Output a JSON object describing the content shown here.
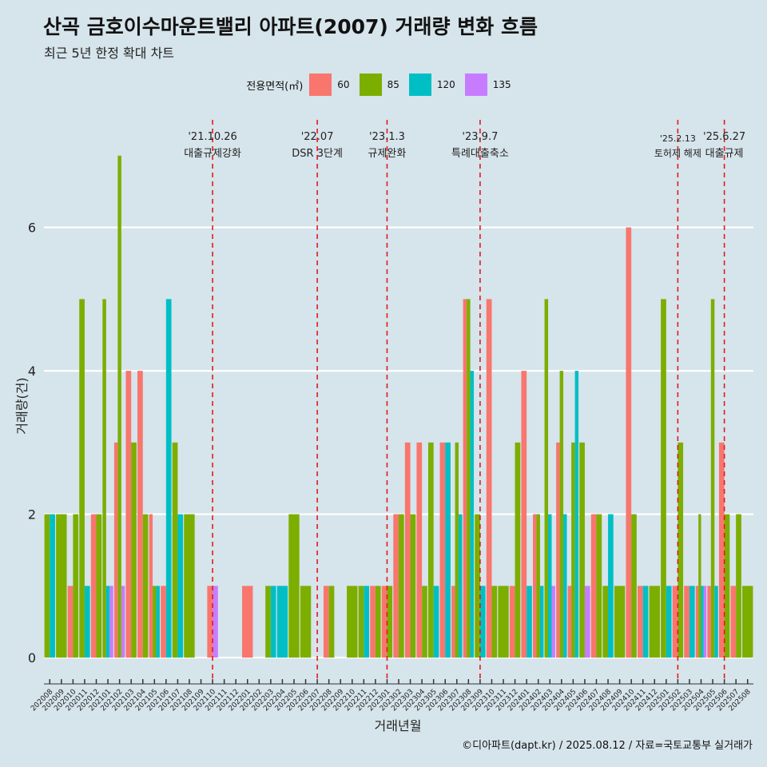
{
  "title": "산곡 금호이수마운트밸리 아파트(2007) 거래량 변화 흐름",
  "subtitle": "최근 5년 한정 확대 차트",
  "caption": "©디아파트(dapt.kr) / 2025.08.12 / 자료=국토교통부 실거래가",
  "legend": {
    "title": "전용면적(㎡)",
    "items": [
      {
        "label": "60",
        "color": "#f8766d"
      },
      {
        "label": "85",
        "color": "#7cae00"
      },
      {
        "label": "120",
        "color": "#00bfc4"
      },
      {
        "label": "135",
        "color": "#c77cff"
      }
    ]
  },
  "chart_data": {
    "type": "bar",
    "xlabel": "거래년월",
    "ylabel": "거래량(건)",
    "ylim": [
      -0.3,
      7.5
    ],
    "yticks": [
      0,
      2,
      4,
      6
    ],
    "grid": "horizontal",
    "legend_position": "top",
    "categories": [
      "202008",
      "202009",
      "202010",
      "202011",
      "202012",
      "202101",
      "202102",
      "202103",
      "202104",
      "202105",
      "202106",
      "202107",
      "202108",
      "202109",
      "202110",
      "202111",
      "202112",
      "202201",
      "202202",
      "202203",
      "202204",
      "202205",
      "202206",
      "202207",
      "202208",
      "202209",
      "202210",
      "202211",
      "202212",
      "202301",
      "202302",
      "202303",
      "202304",
      "202305",
      "202306",
      "202307",
      "202308",
      "202309",
      "202310",
      "202311",
      "202312",
      "202401",
      "202402",
      "202403",
      "202404",
      "202405",
      "202406",
      "202407",
      "202408",
      "202409",
      "202410",
      "202411",
      "202412",
      "202501",
      "202502",
      "202503",
      "202504",
      "202505",
      "202506",
      "202507",
      "202508"
    ],
    "series": [
      {
        "name": "60",
        "color": "#f8766d",
        "values": [
          0,
          0,
          1,
          0,
          2,
          0,
          3,
          4,
          4,
          2,
          1,
          0,
          0,
          0,
          1,
          0,
          0,
          1,
          0,
          0,
          0,
          0,
          0,
          0,
          1,
          0,
          0,
          0,
          1,
          1,
          2,
          3,
          3,
          0,
          3,
          1,
          5,
          0,
          5,
          0,
          1,
          4,
          2,
          0,
          3,
          1,
          0,
          2,
          0,
          0,
          6,
          1,
          0,
          0,
          1,
          1,
          1,
          1,
          3,
          1,
          0
        ]
      },
      {
        "name": "85",
        "color": "#7cae00",
        "values": [
          2,
          2,
          2,
          5,
          2,
          5,
          7,
          3,
          2,
          1,
          0,
          3,
          2,
          0,
          0,
          0,
          0,
          0,
          0,
          1,
          0,
          2,
          1,
          0,
          1,
          0,
          1,
          1,
          1,
          1,
          2,
          2,
          1,
          3,
          0,
          3,
          5,
          2,
          1,
          1,
          3,
          0,
          2,
          5,
          4,
          3,
          3,
          2,
          1,
          1,
          2,
          0,
          1,
          5,
          3,
          0,
          2,
          5,
          2,
          2,
          1
        ]
      },
      {
        "name": "120",
        "color": "#00bfc4",
        "values": [
          2,
          0,
          0,
          1,
          0,
          1,
          0,
          0,
          0,
          1,
          5,
          2,
          0,
          0,
          0,
          0,
          0,
          0,
          0,
          1,
          1,
          0,
          0,
          0,
          0,
          0,
          0,
          1,
          0,
          0,
          0,
          0,
          0,
          1,
          3,
          2,
          4,
          1,
          0,
          0,
          0,
          1,
          1,
          2,
          2,
          4,
          0,
          0,
          2,
          0,
          0,
          1,
          0,
          1,
          0,
          1,
          1,
          1,
          0,
          0,
          0
        ]
      },
      {
        "name": "135",
        "color": "#c77cff",
        "values": [
          0,
          0,
          0,
          0,
          0,
          1,
          1,
          0,
          0,
          0,
          0,
          0,
          0,
          0,
          1,
          0,
          0,
          0,
          0,
          0,
          0,
          0,
          0,
          0,
          0,
          0,
          0,
          0,
          0,
          0,
          0,
          0,
          0,
          0,
          0,
          0,
          0,
          0,
          0,
          0,
          0,
          0,
          0,
          1,
          0,
          0,
          1,
          0,
          0,
          0,
          0,
          0,
          0,
          0,
          0,
          0,
          1,
          0,
          0,
          0,
          0
        ]
      }
    ],
    "annotations": [
      {
        "category": "202110",
        "date": "'21.10.26",
        "text": "대출규제강화"
      },
      {
        "category": "202207",
        "date": "'22.07",
        "text": "DSR 3단계"
      },
      {
        "category": "202301",
        "date": "'23.1.3",
        "text": "규제완화"
      },
      {
        "category": "202309",
        "date": "'23.9.7",
        "text": "특례대출축소"
      },
      {
        "category": "202502",
        "date": "'25.2.13",
        "text": "토허제 해제"
      },
      {
        "category": "202506",
        "date": "'25.6.27",
        "text": "대출규제"
      }
    ]
  }
}
